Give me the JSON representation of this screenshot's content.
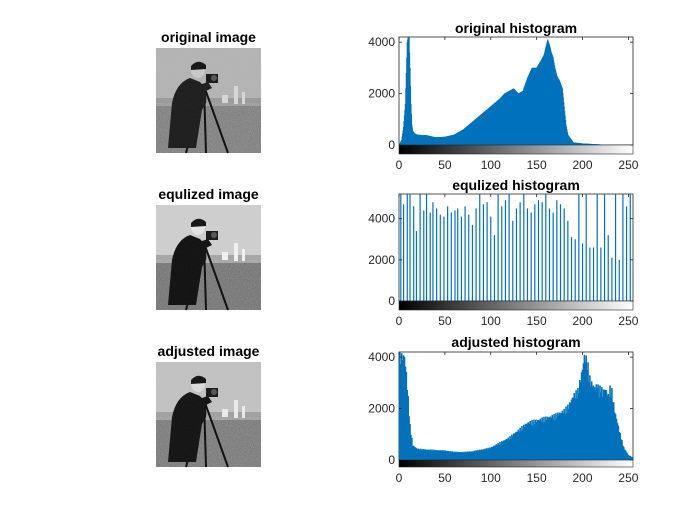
{
  "figure": {
    "background": "#ffffff",
    "bar_color": "#0072bd"
  },
  "panels": [
    {
      "kind": "image",
      "title": "original image",
      "variant": "original"
    },
    {
      "kind": "image",
      "title": "equlized image",
      "variant": "equalized"
    },
    {
      "kind": "image",
      "title": "adjusted image",
      "variant": "adjusted"
    }
  ],
  "chart_data": [
    {
      "type": "bar",
      "title": "original histogram",
      "xlim": [
        0,
        255
      ],
      "ylim": [
        0,
        4200
      ],
      "xticks": [
        0,
        50,
        100,
        150,
        200,
        250
      ],
      "yticks": [
        0,
        2000,
        4000
      ],
      "colorbar": "grayscale",
      "bar_mode": "continuous",
      "x": [
        0,
        3,
        5,
        7,
        8,
        9,
        10,
        11,
        12,
        13,
        14,
        15,
        17,
        20,
        30,
        40,
        50,
        60,
        70,
        80,
        90,
        100,
        110,
        115,
        120,
        125,
        130,
        135,
        140,
        145,
        150,
        155,
        158,
        160,
        162,
        164,
        166,
        168,
        170,
        172,
        175,
        178,
        180,
        182,
        184,
        186,
        188,
        190,
        200,
        210,
        220,
        230,
        240,
        250,
        255
      ],
      "values": [
        0,
        200,
        700,
        1600,
        2800,
        4000,
        4200,
        4200,
        3000,
        1600,
        800,
        550,
        450,
        400,
        380,
        300,
        320,
        400,
        600,
        900,
        1200,
        1500,
        1800,
        2000,
        2100,
        2200,
        2000,
        2100,
        2600,
        3000,
        3000,
        3300,
        3500,
        3800,
        4100,
        3900,
        3600,
        3400,
        3000,
        2700,
        2500,
        2200,
        1500,
        800,
        400,
        300,
        200,
        100,
        60,
        40,
        20,
        10,
        0,
        0,
        0
      ]
    },
    {
      "type": "bar",
      "title": "equlized histogram",
      "xlim": [
        0,
        255
      ],
      "ylim": [
        0,
        5200
      ],
      "xticks": [
        0,
        50,
        100,
        150,
        200,
        250
      ],
      "yticks": [
        0,
        2000,
        4000
      ],
      "colorbar": "grayscale",
      "bar_mode": "sparse",
      "x": [
        2,
        5,
        9,
        12,
        16,
        19,
        23,
        27,
        30,
        34,
        37,
        41,
        45,
        49,
        53,
        57,
        61,
        64,
        68,
        72,
        76,
        80,
        84,
        88,
        92,
        96,
        100,
        104,
        108,
        112,
        116,
        120,
        124,
        128,
        132,
        136,
        140,
        144,
        148,
        152,
        156,
        160,
        164,
        168,
        172,
        176,
        180,
        184,
        188,
        192,
        196,
        200,
        204,
        208,
        212,
        216,
        220,
        224,
        228,
        232,
        236,
        240,
        244,
        248,
        252
      ],
      "values": [
        5200,
        4700,
        5200,
        5200,
        4600,
        3400,
        5200,
        4400,
        5200,
        4300,
        4800,
        4500,
        4200,
        4100,
        4600,
        4300,
        4400,
        4500,
        4100,
        4600,
        4200,
        3700,
        4500,
        5200,
        4700,
        4800,
        4100,
        3200,
        5200,
        4600,
        4900,
        5200,
        3900,
        4500,
        4800,
        5200,
        4500,
        4300,
        4700,
        4900,
        4800,
        5200,
        4500,
        4300,
        4900,
        4700,
        4500,
        3900,
        3100,
        3000,
        5200,
        2800,
        5200,
        2600,
        2600,
        5200,
        2600,
        5200,
        3200,
        2100,
        5200,
        2000,
        5200,
        4600,
        5200
      ]
    },
    {
      "type": "bar",
      "title": "adjusted histogram",
      "xlim": [
        0,
        255
      ],
      "ylim": [
        0,
        4200
      ],
      "xticks": [
        0,
        50,
        100,
        150,
        200,
        250
      ],
      "yticks": [
        0,
        2000,
        4000
      ],
      "colorbar": "grayscale",
      "bar_mode": "dense",
      "x": [
        0,
        2,
        4,
        6,
        8,
        10,
        12,
        15,
        20,
        30,
        40,
        50,
        60,
        70,
        80,
        90,
        100,
        110,
        120,
        130,
        140,
        150,
        160,
        170,
        180,
        185,
        190,
        195,
        198,
        200,
        202,
        204,
        206,
        208,
        210,
        212,
        214,
        216,
        218,
        220,
        222,
        224,
        226,
        228,
        230,
        232,
        235,
        240,
        245,
        250,
        255
      ],
      "values": [
        4200,
        4200,
        4200,
        4200,
        3500,
        2500,
        1400,
        600,
        450,
        420,
        400,
        380,
        330,
        320,
        350,
        420,
        500,
        700,
        900,
        1200,
        1500,
        1600,
        1700,
        1800,
        2000,
        2200,
        2600,
        2800,
        3300,
        3700,
        4200,
        4100,
        3800,
        3300,
        3100,
        3000,
        2900,
        3100,
        2800,
        3000,
        2700,
        2900,
        2800,
        2600,
        2900,
        2800,
        2000,
        1200,
        500,
        200,
        100
      ]
    }
  ]
}
